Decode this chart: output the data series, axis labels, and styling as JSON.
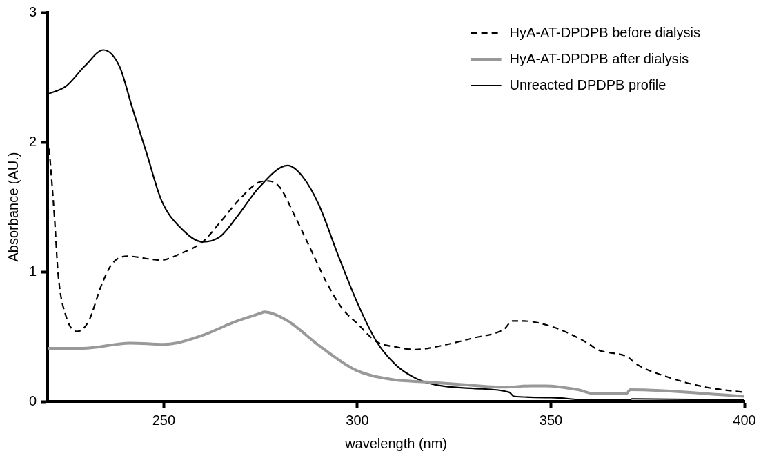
{
  "chart_data": {
    "type": "line",
    "xlabel": "wavelength (nm)",
    "ylabel": "Absorbance (AU.)",
    "xlim": [
      220,
      400
    ],
    "ylim": [
      0,
      3
    ],
    "xticks": [
      250,
      300,
      350,
      400
    ],
    "yticks": [
      0,
      1,
      2,
      3
    ],
    "grid": false,
    "legend": "top right",
    "marker": "none",
    "series": [
      {
        "name": "HyA-AT-DPDPB before dialysis",
        "color": "#000000",
        "line_style": "dashed",
        "x": [
          220.4,
          221.8,
          222.7,
          224.7,
          227.6,
          230.6,
          233.8,
          236.6,
          240.6,
          249.2,
          254.3,
          260,
          264.5,
          269.3,
          274.6,
          277,
          280,
          284,
          288,
          292,
          296,
          300,
          305,
          310,
          315,
          320,
          330,
          338,
          340,
          343,
          350,
          355,
          360,
          362,
          370,
          372,
          380,
          390,
          400
        ],
        "values": [
          1.95,
          1.4,
          0.98,
          0.66,
          0.54,
          0.62,
          0.89,
          1.06,
          1.12,
          1.09,
          1.14,
          1.23,
          1.38,
          1.55,
          1.69,
          1.7,
          1.65,
          1.42,
          1.17,
          0.92,
          0.72,
          0.6,
          0.46,
          0.42,
          0.4,
          0.42,
          0.49,
          0.56,
          0.62,
          0.62,
          0.58,
          0.52,
          0.44,
          0.4,
          0.34,
          0.29,
          0.19,
          0.11,
          0.07
        ]
      },
      {
        "name": "HyA-AT-DPDPB after dialysis",
        "color": "#999999",
        "line_style": "solid",
        "x": [
          220,
          229,
          241.3,
          250,
          260,
          268,
          275,
          276,
          281.5,
          290.6,
          299.7,
          308.8,
          318,
          327,
          338,
          345,
          348.5,
          357,
          361,
          369.5,
          370.5,
          400
        ],
        "values": [
          0.41,
          0.41,
          0.45,
          0.44,
          0.51,
          0.61,
          0.68,
          0.69,
          0.63,
          0.42,
          0.24,
          0.17,
          0.15,
          0.13,
          0.11,
          0.12,
          0.12,
          0.09,
          0.06,
          0.06,
          0.09,
          0.04
        ]
      },
      {
        "name": "Unreacted DPDPB profile",
        "color": "#000000",
        "line_style": "solid",
        "x": [
          220,
          224.7,
          229.7,
          234.4,
          238.6,
          241.7,
          245.6,
          249.4,
          254.3,
          260.1,
          264.5,
          269.3,
          274.6,
          282,
          285.7,
          290,
          295,
          300,
          305,
          310,
          315,
          320,
          330,
          339.3,
          340.4,
          350,
          360,
          370,
          371,
          400
        ],
        "values": [
          2.37,
          2.43,
          2.59,
          2.71,
          2.58,
          2.28,
          1.91,
          1.55,
          1.34,
          1.23,
          1.27,
          1.44,
          1.65,
          1.82,
          1.74,
          1.52,
          1.13,
          0.76,
          0.46,
          0.28,
          0.18,
          0.13,
          0.1,
          0.07,
          0.04,
          0.03,
          0.01,
          0.01,
          0.02,
          0.01
        ]
      }
    ]
  }
}
